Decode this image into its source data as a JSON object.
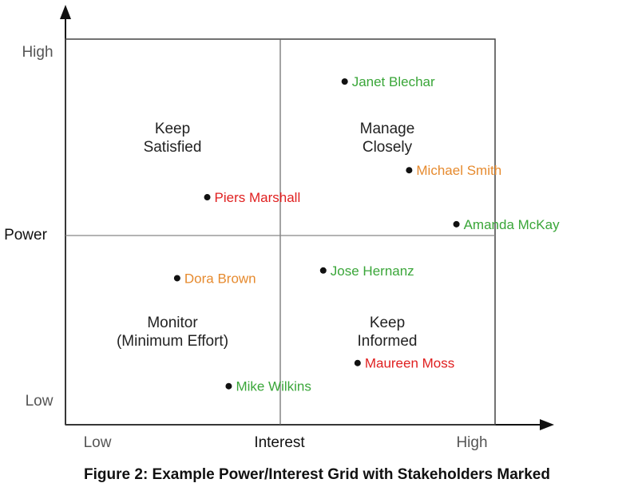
{
  "axes": {
    "y_title": "Power",
    "x_title": "Interest",
    "y_high": "High",
    "y_low": "Low",
    "x_low": "Low",
    "x_high": "High"
  },
  "quadrants": {
    "top_left": [
      "Keep",
      "Satisfied"
    ],
    "top_right": [
      "Manage",
      "Closely"
    ],
    "bottom_left": [
      "Monitor",
      "(Minimum Effort)"
    ],
    "bottom_right": [
      "Keep",
      "Informed"
    ]
  },
  "colors": {
    "green": "#3aa639",
    "orange": "#e68a2e",
    "red": "#e02020",
    "point": "#111111",
    "line": "#555555"
  },
  "stakeholders": [
    {
      "name": "Janet Blechar",
      "interest": 0.65,
      "power": 0.89,
      "color": "green"
    },
    {
      "name": "Michael Smith",
      "interest": 0.8,
      "power": 0.66,
      "color": "orange"
    },
    {
      "name": "Piers Marshall",
      "interest": 0.33,
      "power": 0.59,
      "color": "red"
    },
    {
      "name": "Amanda McKay",
      "interest": 0.91,
      "power": 0.52,
      "color": "green"
    },
    {
      "name": "Dora Brown",
      "interest": 0.26,
      "power": 0.38,
      "color": "orange"
    },
    {
      "name": "Jose Hernanz",
      "interest": 0.6,
      "power": 0.4,
      "color": "green"
    },
    {
      "name": "Maureen Moss",
      "interest": 0.68,
      "power": 0.16,
      "color": "red"
    },
    {
      "name": "Mike Wilkins",
      "interest": 0.38,
      "power": 0.1,
      "color": "green"
    }
  ],
  "caption": "Figure 2: Example Power/Interest Grid with Stakeholders Marked"
}
